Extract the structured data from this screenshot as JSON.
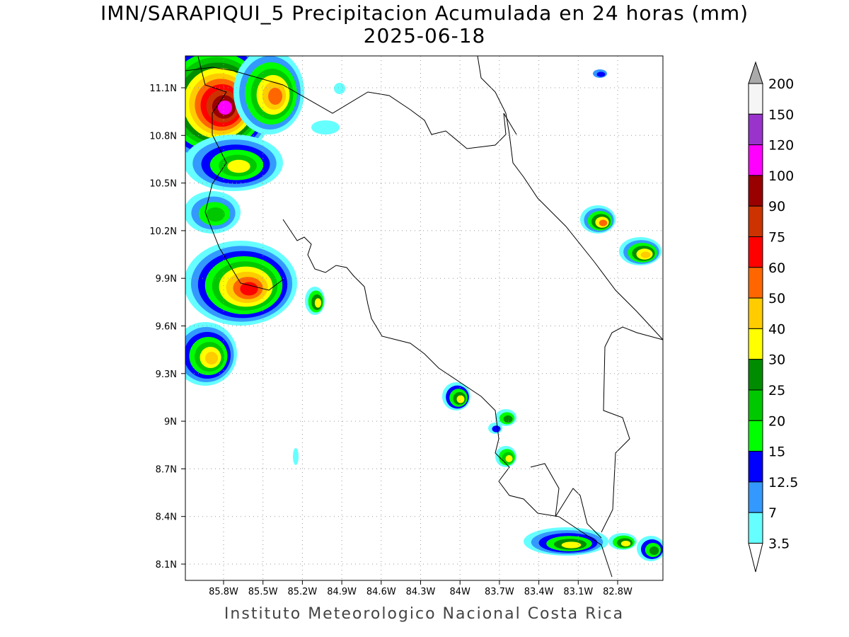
{
  "title": "IMN/SARAPIQUI_5 Precipitacion Acumulada en 24 horas (mm)",
  "subtitle": "2025-06-18",
  "footer": "Instituto Meteorologico Nacional Costa Rica",
  "map": {
    "lat_ticks": [
      "11.1N",
      "10.8N",
      "10.5N",
      "10.2N",
      "9.9N",
      "9.6N",
      "9.3N",
      "9N",
      "8.7N",
      "8.4N",
      "8.1N"
    ],
    "lon_ticks": [
      "85.8W",
      "85.5W",
      "85.2W",
      "84.9W",
      "84.6W",
      "84.3W",
      "84W",
      "83.7W",
      "83.4W",
      "83.1W",
      "82.8W"
    ],
    "grid": "dotted"
  },
  "colorbar": {
    "labels": [
      "200",
      "150",
      "120",
      "100",
      "90",
      "75",
      "60",
      "50",
      "40",
      "30",
      "25",
      "20",
      "15",
      "12.5",
      "7",
      "3.5"
    ],
    "colors": [
      "#f5f5f5",
      "#9933cc",
      "#ff00ff",
      "#990000",
      "#cc3300",
      "#ff0000",
      "#ff6600",
      "#ffcc00",
      "#ffff00",
      "#008c00",
      "#00c800",
      "#00ff00",
      "#0000ff",
      "#3399ff",
      "#66ffff"
    ],
    "over_color": "#aaaaaa",
    "under_color": "#ffffff"
  }
}
